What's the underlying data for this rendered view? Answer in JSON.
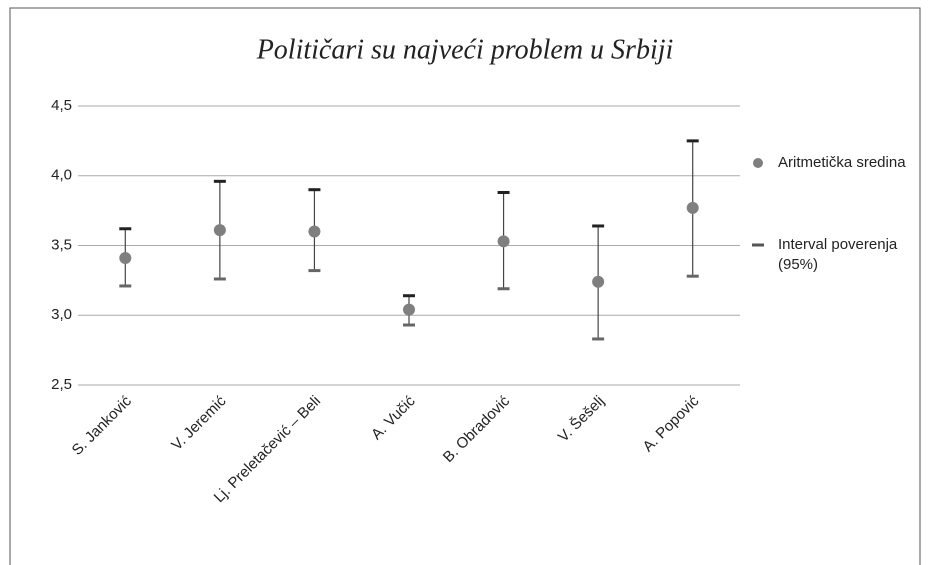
{
  "chart_data": {
    "type": "errorbar",
    "title": "Političari su najveći problem u Srbiji",
    "categories": [
      "S. Janković",
      "V. Jeremić",
      "Lj. Preletačević – Beli",
      "A. Vučić",
      "B. Obradović",
      "V. Šešelj",
      "A. Popović"
    ],
    "series": [
      {
        "name": "Aritmetička sredina",
        "color": "#7f7f7f",
        "values": [
          3.41,
          3.61,
          3.6,
          3.04,
          3.53,
          3.24,
          3.77
        ]
      }
    ],
    "interval": {
      "name": "Interval poverenja (95%)",
      "color": "#444444",
      "lower": [
        3.21,
        3.26,
        3.32,
        2.93,
        3.19,
        2.83,
        3.28
      ],
      "upper": [
        3.62,
        3.96,
        3.9,
        3.14,
        3.88,
        3.64,
        4.25
      ]
    },
    "ylim": [
      2.5,
      4.5
    ],
    "yticks": [
      {
        "value": 2.5,
        "label": "2,5"
      },
      {
        "value": 3.0,
        "label": "3,0"
      },
      {
        "value": 3.5,
        "label": "3,5"
      },
      {
        "value": 4.0,
        "label": "4,0"
      },
      {
        "value": 4.5,
        "label": "4,5"
      }
    ],
    "grid": true,
    "legend": "right"
  }
}
